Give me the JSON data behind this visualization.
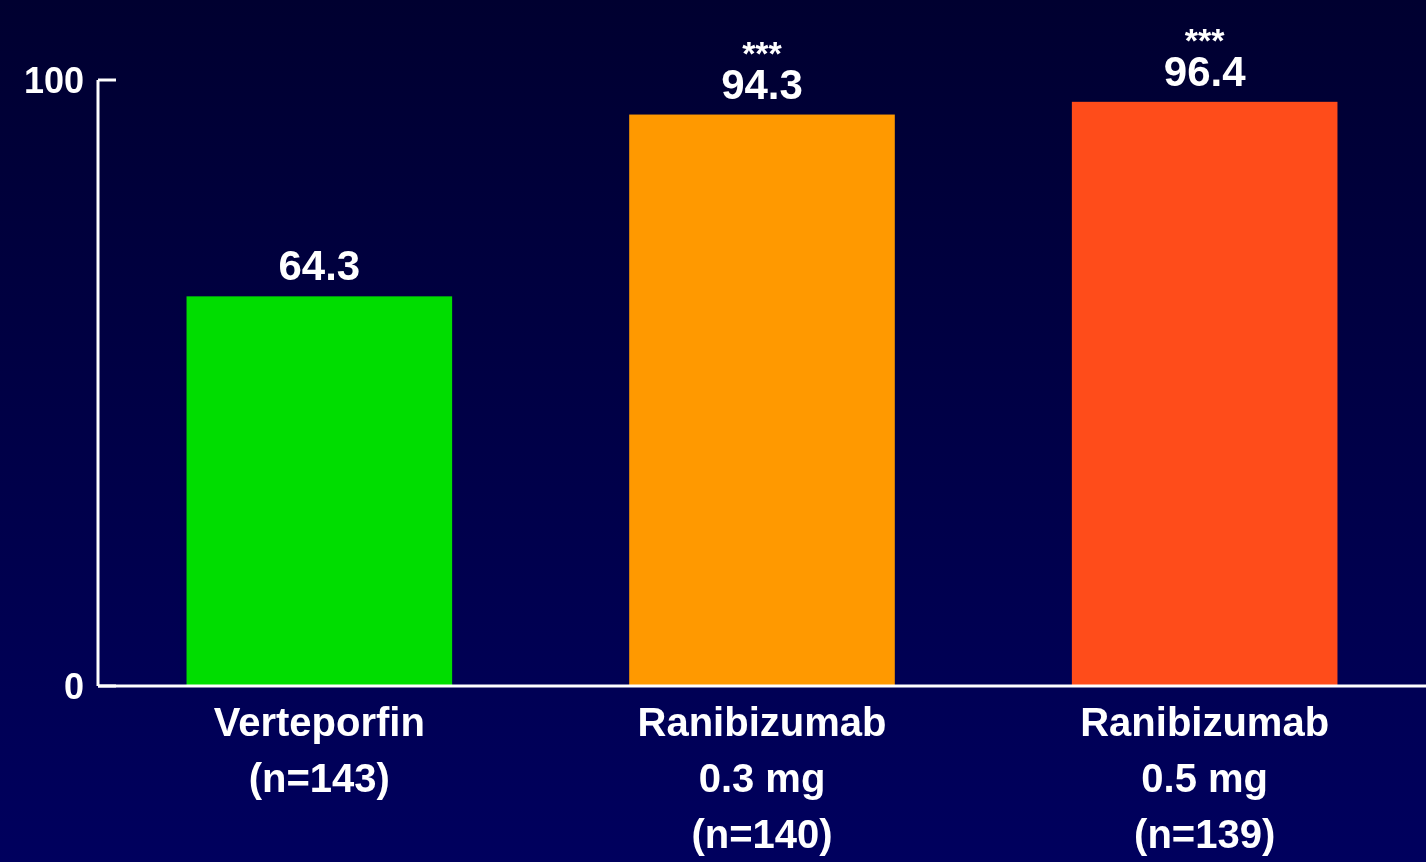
{
  "chart_data": {
    "type": "bar",
    "categories": [
      "Verteporfin\n(n=143)",
      "Ranibizumab\n0.3 mg\n(n=140)",
      "Ranibizumab\n0.5 mg\n(n=139)"
    ],
    "values": [
      64.3,
      94.3,
      96.4
    ],
    "colors": [
      "#00dd00",
      "#ff9900",
      "#ff4c1a"
    ],
    "ylim": [
      0,
      100
    ],
    "yticks": [
      0,
      100
    ],
    "grid": false,
    "data_labels": true,
    "annotations": [
      {
        "text": "***",
        "x": "Ranibizumab\n0.3 mg\n(n=140)",
        "y": 94.3
      },
      {
        "text": "***",
        "x": "Ranibizumab\n0.5 mg\n(n=139)",
        "y": 96.4
      }
    ]
  }
}
